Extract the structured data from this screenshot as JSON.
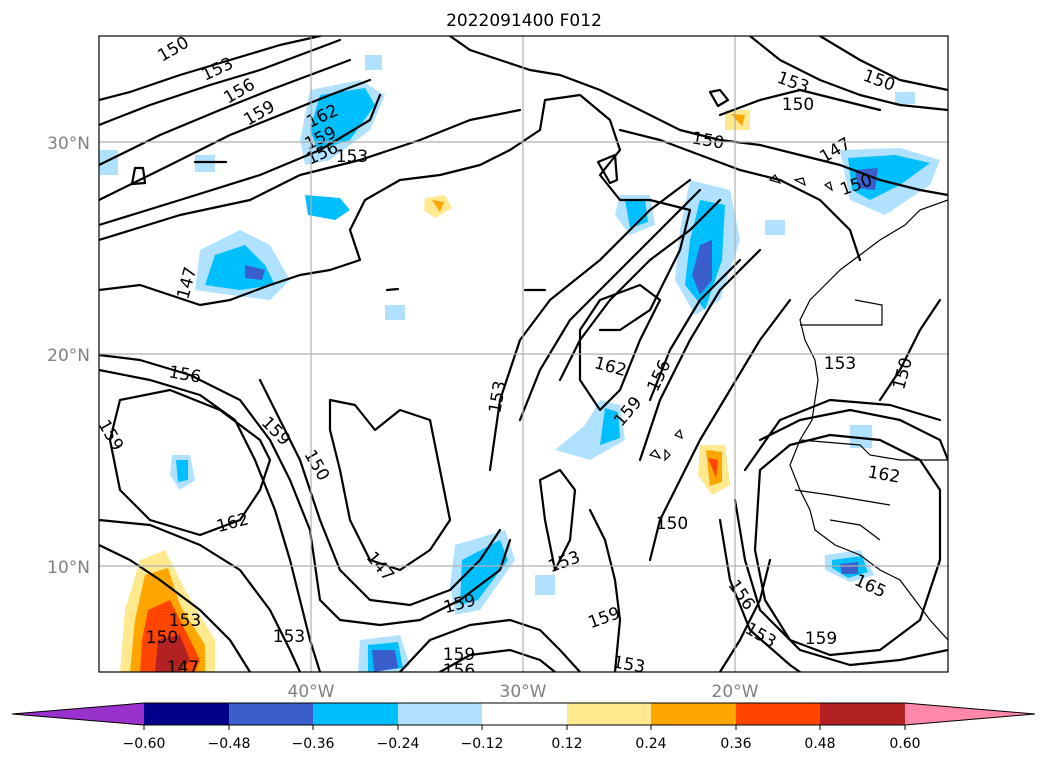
{
  "title": "2022091400 F012",
  "map": {
    "lat_labels": [
      "30°N",
      "20°N",
      "10°N"
    ],
    "lon_labels": [
      "40°W",
      "30°W",
      "20°W"
    ],
    "contour_labels": [
      "150",
      "153",
      "156",
      "159",
      "162",
      "147",
      "150",
      "153",
      "150",
      "147",
      "150",
      "153",
      "150",
      "156",
      "159",
      "162",
      "147",
      "150",
      "153",
      "150",
      "159",
      "162",
      "159",
      "156",
      "153",
      "150",
      "153",
      "159",
      "162",
      "159",
      "153",
      "150",
      "147",
      "153",
      "156",
      "153",
      "159",
      "165",
      "162",
      "153",
      "153",
      "150",
      "159",
      "156",
      "153",
      "150",
      "153",
      "147",
      "153",
      "159",
      "156"
    ]
  },
  "colorbar": {
    "tick_labels": [
      "−0.60",
      "−0.48",
      "−0.36",
      "−0.24",
      "−0.12",
      "0.12",
      "0.24",
      "0.36",
      "0.48",
      "0.60"
    ],
    "colors": [
      "#9932cc",
      "#00008b",
      "#3a5fcd",
      "#00bfff",
      "#b0e2ff",
      "#ffffff",
      "#fee98e",
      "#ffa500",
      "#ff4500",
      "#b22222",
      "#ff88aa"
    ]
  }
}
